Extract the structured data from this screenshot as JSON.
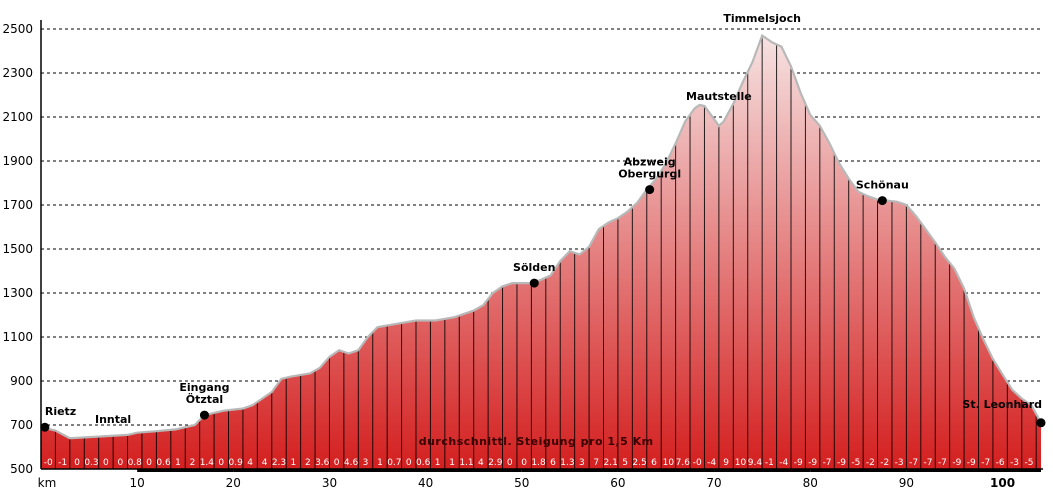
{
  "chart_data": {
    "type": "area",
    "title": "",
    "xlabel": "km",
    "ylabel": "",
    "xlim": [
      0,
      104
    ],
    "ylim": [
      500,
      2500
    ],
    "yticks": [
      500,
      700,
      900,
      1100,
      1300,
      1500,
      1700,
      1900,
      2100,
      2300,
      2500
    ],
    "xticks": [
      {
        "value": 0,
        "label": "km",
        "bold": false
      },
      {
        "value": 10,
        "label": "10",
        "bold": false
      },
      {
        "value": 20,
        "label": "20",
        "bold": false
      },
      {
        "value": 30,
        "label": "30",
        "bold": false
      },
      {
        "value": 40,
        "label": "40",
        "bold": false
      },
      {
        "value": 50,
        "label": "50",
        "bold": false
      },
      {
        "value": 60,
        "label": "60",
        "bold": false
      },
      {
        "value": 70,
        "label": "70",
        "bold": false
      },
      {
        "value": 80,
        "label": "80",
        "bold": false
      },
      {
        "value": 90,
        "label": "90",
        "bold": false
      },
      {
        "value": 100,
        "label": "100",
        "bold": true
      }
    ],
    "grid": "horizontal-dashed",
    "colors": {
      "fill_top": "#f6e2e2",
      "fill_bottom": "#d41f1f",
      "outline": "#b8b8b8",
      "axis": "#000000"
    },
    "profile": [
      [
        0,
        690
      ],
      [
        1.5,
        675
      ],
      [
        3,
        640
      ],
      [
        5,
        645
      ],
      [
        7,
        650
      ],
      [
        9,
        655
      ],
      [
        10,
        665
      ],
      [
        12,
        672
      ],
      [
        14,
        680
      ],
      [
        16,
        700
      ],
      [
        17,
        745
      ],
      [
        19,
        765
      ],
      [
        21,
        775
      ],
      [
        22,
        790
      ],
      [
        24,
        850
      ],
      [
        25,
        910
      ],
      [
        26,
        920
      ],
      [
        28,
        935
      ],
      [
        29,
        960
      ],
      [
        30,
        1010
      ],
      [
        31,
        1040
      ],
      [
        32,
        1025
      ],
      [
        33,
        1040
      ],
      [
        34,
        1100
      ],
      [
        35,
        1145
      ],
      [
        37,
        1160
      ],
      [
        39,
        1175
      ],
      [
        41,
        1175
      ],
      [
        43,
        1190
      ],
      [
        45,
        1220
      ],
      [
        46,
        1245
      ],
      [
        47,
        1300
      ],
      [
        48,
        1330
      ],
      [
        49,
        1345
      ],
      [
        50,
        1345
      ],
      [
        51,
        1345
      ],
      [
        52,
        1360
      ],
      [
        53,
        1380
      ],
      [
        54,
        1445
      ],
      [
        55,
        1490
      ],
      [
        56,
        1475
      ],
      [
        57,
        1510
      ],
      [
        58,
        1590
      ],
      [
        59,
        1620
      ],
      [
        60,
        1640
      ],
      [
        61,
        1670
      ],
      [
        62,
        1710
      ],
      [
        63,
        1770
      ],
      [
        64,
        1820
      ],
      [
        65,
        1890
      ],
      [
        66,
        1980
      ],
      [
        67,
        2080
      ],
      [
        68,
        2140
      ],
      [
        68.5,
        2155
      ],
      [
        69,
        2150
      ],
      [
        70,
        2090
      ],
      [
        70.5,
        2060
      ],
      [
        71,
        2080
      ],
      [
        72,
        2160
      ],
      [
        73,
        2260
      ],
      [
        74,
        2350
      ],
      [
        75,
        2470
      ],
      [
        76,
        2440
      ],
      [
        77,
        2420
      ],
      [
        78,
        2330
      ],
      [
        79,
        2210
      ],
      [
        80,
        2110
      ],
      [
        81,
        2060
      ],
      [
        82,
        1980
      ],
      [
        83,
        1890
      ],
      [
        84,
        1820
      ],
      [
        85,
        1760
      ],
      [
        86,
        1740
      ],
      [
        87,
        1725
      ],
      [
        88,
        1720
      ],
      [
        89,
        1715
      ],
      [
        90,
        1700
      ],
      [
        91,
        1650
      ],
      [
        92,
        1590
      ],
      [
        93,
        1530
      ],
      [
        94,
        1465
      ],
      [
        95,
        1410
      ],
      [
        96,
        1320
      ],
      [
        97,
        1190
      ],
      [
        98,
        1090
      ],
      [
        99,
        1000
      ],
      [
        100,
        930
      ],
      [
        101,
        860
      ],
      [
        102,
        820
      ],
      [
        103,
        790
      ],
      [
        104,
        710
      ]
    ],
    "locations": [
      {
        "name": "Rietz",
        "km": 0.4,
        "elev": 690,
        "marker": true,
        "anchor": "start"
      },
      {
        "name": "Inntal",
        "km": 7.5,
        "elev": 700,
        "marker": false,
        "anchor": "middle"
      },
      {
        "name": "Eingang",
        "name2": "Ötztal",
        "km": 17,
        "elev": 745,
        "marker": true,
        "anchor": "middle"
      },
      {
        "name": "Sölden",
        "km": 51.3,
        "elev": 1345,
        "marker": true,
        "anchor": "middle"
      },
      {
        "name": "Abzweig",
        "name2": "Obergurgl",
        "km": 63.3,
        "elev": 1770,
        "marker": true,
        "anchor": "middle"
      },
      {
        "name": "Mautstelle",
        "km": 70.5,
        "elev": 2150,
        "marker": false,
        "anchor": "middle"
      },
      {
        "name": "Timmelsjoch",
        "km": 75,
        "elev": 2470,
        "marker": false,
        "anchor": "middle"
      },
      {
        "name": "Schönau",
        "km": 87.5,
        "elev": 1720,
        "marker": true,
        "anchor": "middle"
      },
      {
        "name": "St. Leonhard",
        "km": 104,
        "elev": 710,
        "marker": true,
        "anchor": "end"
      }
    ],
    "annotation": "durchschnittl. Steigung pro 1,5 Km",
    "gradients": [
      {
        "km": 0.75,
        "label": "-0"
      },
      {
        "km": 2.25,
        "label": "-1"
      },
      {
        "km": 3.75,
        "label": "0"
      },
      {
        "km": 5.25,
        "label": "0.3"
      },
      {
        "km": 6.75,
        "label": "0"
      },
      {
        "km": 8.25,
        "label": "0"
      },
      {
        "km": 9.75,
        "label": "0.8"
      },
      {
        "km": 11.25,
        "label": "0"
      },
      {
        "km": 12.75,
        "label": "0.6"
      },
      {
        "km": 14.25,
        "label": "1"
      },
      {
        "km": 15.75,
        "label": "2"
      },
      {
        "km": 17.25,
        "label": "1.4"
      },
      {
        "km": 18.75,
        "label": "0"
      },
      {
        "km": 20.25,
        "label": "0.9"
      },
      {
        "km": 21.75,
        "label": "4"
      },
      {
        "km": 23.25,
        "label": "4"
      },
      {
        "km": 24.75,
        "label": "2.3"
      },
      {
        "km": 26.25,
        "label": "1"
      },
      {
        "km": 27.75,
        "label": "2"
      },
      {
        "km": 29.25,
        "label": "3.6"
      },
      {
        "km": 30.75,
        "label": "0"
      },
      {
        "km": 32.25,
        "label": "4.6"
      },
      {
        "km": 33.75,
        "label": "3"
      },
      {
        "km": 35.25,
        "label": "1"
      },
      {
        "km": 36.75,
        "label": "0.7"
      },
      {
        "km": 38.25,
        "label": "0"
      },
      {
        "km": 39.75,
        "label": "0.6"
      },
      {
        "km": 41.25,
        "label": "1"
      },
      {
        "km": 42.75,
        "label": "1"
      },
      {
        "km": 44.25,
        "label": "1.1"
      },
      {
        "km": 45.75,
        "label": "4"
      },
      {
        "km": 47.25,
        "label": "2.9"
      },
      {
        "km": 48.75,
        "label": "0"
      },
      {
        "km": 50.25,
        "label": "0"
      },
      {
        "km": 51.75,
        "label": "1.8"
      },
      {
        "km": 53.25,
        "label": "6"
      },
      {
        "km": 54.75,
        "label": "1.3"
      },
      {
        "km": 56.25,
        "label": "3"
      },
      {
        "km": 57.75,
        "label": "7"
      },
      {
        "km": 59.25,
        "label": "2.1"
      },
      {
        "km": 60.75,
        "label": "5"
      },
      {
        "km": 62.25,
        "label": "2.5"
      },
      {
        "km": 63.75,
        "label": "6"
      },
      {
        "km": 65.25,
        "label": "10"
      },
      {
        "km": 66.75,
        "label": "7.6"
      },
      {
        "km": 68.25,
        "label": "-0"
      },
      {
        "km": 69.75,
        "label": "-4"
      },
      {
        "km": 71.25,
        "label": "9"
      },
      {
        "km": 72.75,
        "label": "10"
      },
      {
        "km": 74.25,
        "label": "9.4"
      },
      {
        "km": 75.75,
        "label": "-1"
      },
      {
        "km": 77.25,
        "label": "-4"
      },
      {
        "km": 78.75,
        "label": "-9"
      },
      {
        "km": 80.25,
        "label": "-9"
      },
      {
        "km": 81.75,
        "label": "-7"
      },
      {
        "km": 83.25,
        "label": "-9"
      },
      {
        "km": 84.75,
        "label": "-5"
      },
      {
        "km": 86.25,
        "label": "-2"
      },
      {
        "km": 87.75,
        "label": "-2"
      },
      {
        "km": 89.25,
        "label": "-3"
      },
      {
        "km": 90.75,
        "label": "-7"
      },
      {
        "km": 92.25,
        "label": "-7"
      },
      {
        "km": 93.75,
        "label": "-7"
      },
      {
        "km": 95.25,
        "label": "-9"
      },
      {
        "km": 96.75,
        "label": "-9"
      },
      {
        "km": 98.25,
        "label": "-7"
      },
      {
        "km": 99.75,
        "label": "-6"
      },
      {
        "km": 101.25,
        "label": "-3"
      },
      {
        "km": 102.75,
        "label": "-5"
      }
    ]
  }
}
